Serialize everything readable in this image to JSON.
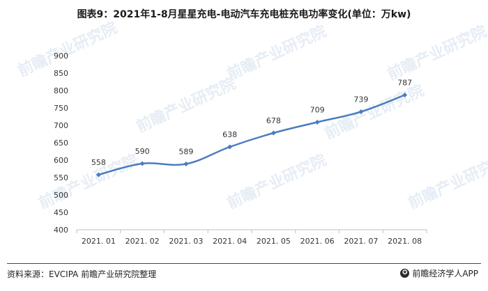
{
  "title": "图表9：2021年1-8月星星充电-电动汽车充电桩充电功率变化(单位：万kw)",
  "source": "资料来源：EVCIPA 前瞻产业研究院整理",
  "brand": {
    "name": "前瞻经济学人APP",
    "icon": "brand-logo-icon"
  },
  "watermark": {
    "text": "前瞻产业研究院"
  },
  "colors": {
    "line": "#4a7cc0",
    "grid": "#d9d9d9",
    "text": "#333333"
  },
  "chart_data": {
    "type": "line",
    "categories": [
      "2021. 01",
      "2021. 02",
      "2021. 03",
      "2021. 04",
      "2021. 05",
      "2021. 06",
      "2021. 07",
      "2021. 08"
    ],
    "values": [
      558,
      590,
      589,
      638,
      678,
      709,
      739,
      787
    ],
    "data_labels": [
      "558",
      "590",
      "589",
      "638",
      "678",
      "709",
      "739",
      "787"
    ],
    "y_ticks": [
      "400",
      "450",
      "500",
      "550",
      "600",
      "650",
      "700",
      "750",
      "800",
      "850",
      "900"
    ],
    "ylim": [
      400,
      900
    ],
    "grid": false,
    "smooth": true,
    "marker": "diamond"
  }
}
